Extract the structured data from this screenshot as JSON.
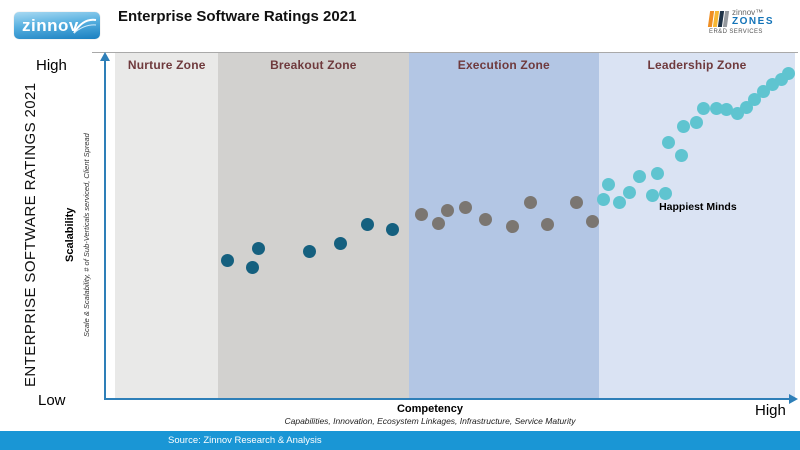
{
  "header": {
    "logo": "zinnov",
    "title": "Enterprise Software Ratings 2021",
    "zones_logo": {
      "brand": "zinnov™",
      "name": "ZONES",
      "tagline": "ER&D SERVICES",
      "bar_colors": [
        "#ef8e23",
        "#f7b733",
        "#1f3347",
        "#95999e"
      ]
    }
  },
  "left_axis": {
    "high": "High",
    "low": "Low",
    "outer_title": "ENTERPRISE SOFTWARE RATINGS 2021",
    "axis_title": "Scalability",
    "axis_subtitle": "Scale & Scalability, # of Sub-Verticals serviced, Client Spread"
  },
  "bottom_axis": {
    "axis_title": "Competency",
    "axis_subtitle": "Capabilities, Innovation, Ecosystem Linkages, Infrastructure, Service Maturity",
    "high": "High"
  },
  "annotation": {
    "label": "Happiest Minds",
    "competency": 80.3,
    "scalability": 55.5
  },
  "footer": {
    "source": "Source: Zinnov  Research & Analysis"
  },
  "colors": {
    "axis": "#2e7fb8",
    "zone_label_text": "#6f3a3d",
    "footer_bg": "#1a96d5"
  },
  "chart_data": {
    "type": "scatter",
    "title": "Enterprise Software Ratings 2021",
    "xlabel": "Competency",
    "ylabel": "Scalability",
    "axis_scale_labels": {
      "y_min": "Low",
      "y_max": "High",
      "x_max": "High"
    },
    "zones": [
      {
        "label": "Nurture Zone",
        "range": [
          1.5,
          16.4
        ],
        "bg": "#e9e9e8"
      },
      {
        "label": "Breakout Zone",
        "range": [
          16.4,
          44.0
        ],
        "bg": "#d2d1cf"
      },
      {
        "label": "Execution Zone",
        "range": [
          44.0,
          71.6
        ],
        "bg": "#b3c6e4"
      },
      {
        "label": "Leadership Zone",
        "range": [
          71.6,
          100
        ],
        "bg": "#dae3f3"
      }
    ],
    "series": [
      {
        "name": "Breakout Zone companies",
        "color": "#15607f",
        "points": [
          [
            17.7,
            40.1
          ],
          [
            21.4,
            38.3
          ],
          [
            22.3,
            43.8
          ],
          [
            29.6,
            42.7
          ],
          [
            34.2,
            45.2
          ],
          [
            38.1,
            50.7
          ],
          [
            41.6,
            49.0
          ]
        ]
      },
      {
        "name": "Execution Zone companies",
        "color": "#7b7671",
        "points": [
          [
            45.8,
            53.6
          ],
          [
            48.3,
            51.0
          ],
          [
            49.7,
            54.5
          ],
          [
            52.2,
            55.6
          ],
          [
            55.2,
            51.9
          ],
          [
            59.0,
            49.9
          ],
          [
            61.6,
            56.8
          ],
          [
            64.2,
            50.7
          ],
          [
            68.3,
            56.8
          ],
          [
            70.7,
            51.3
          ]
        ]
      },
      {
        "name": "Leadership Zone companies",
        "color": "#5fc4d0",
        "points": [
          [
            72.2,
            57.9
          ],
          [
            72.9,
            62.0
          ],
          [
            74.6,
            56.8
          ],
          [
            76.0,
            59.9
          ],
          [
            77.4,
            64.3
          ],
          [
            79.3,
            58.8
          ],
          [
            80.0,
            65.4
          ],
          [
            81.3,
            59.4
          ],
          [
            81.6,
            74.1
          ],
          [
            83.5,
            70.6
          ],
          [
            83.9,
            78.7
          ],
          [
            85.7,
            80.1
          ],
          [
            86.8,
            83.9
          ],
          [
            88.6,
            84.1
          ],
          [
            90.1,
            83.6
          ],
          [
            91.7,
            82.7
          ],
          [
            92.9,
            84.4
          ],
          [
            94.1,
            86.5
          ],
          [
            95.5,
            88.8
          ],
          [
            96.8,
            90.8
          ],
          [
            98.1,
            92.5
          ],
          [
            99.1,
            94.0
          ]
        ]
      }
    ],
    "highlighted_company": "Happiest Minds"
  }
}
